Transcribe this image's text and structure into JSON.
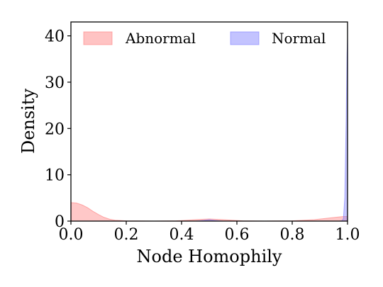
{
  "chart_data": {
    "type": "area",
    "xlabel": "Node Homophily",
    "ylabel": "Density",
    "xlim": [
      0.0,
      1.0
    ],
    "ylim": [
      0,
      43
    ],
    "x_ticks": [
      "0.0",
      "0.2",
      "0.4",
      "0.6",
      "0.8",
      "1.0"
    ],
    "y_ticks": [
      "0",
      "10",
      "20",
      "30",
      "40"
    ],
    "legend_position": "top",
    "grid": false,
    "series": [
      {
        "name": "Abnormal",
        "color": "#ff7b7b",
        "points": [
          [
            0.0,
            4.0
          ],
          [
            0.02,
            3.9
          ],
          [
            0.04,
            3.5
          ],
          [
            0.06,
            2.9
          ],
          [
            0.08,
            2.1
          ],
          [
            0.1,
            1.4
          ],
          [
            0.12,
            0.8
          ],
          [
            0.14,
            0.4
          ],
          [
            0.16,
            0.2
          ],
          [
            0.2,
            0.05
          ],
          [
            0.3,
            0.0
          ],
          [
            0.38,
            0.05
          ],
          [
            0.45,
            0.3
          ],
          [
            0.5,
            0.45
          ],
          [
            0.55,
            0.3
          ],
          [
            0.62,
            0.05
          ],
          [
            0.7,
            0.0
          ],
          [
            0.8,
            0.05
          ],
          [
            0.88,
            0.3
          ],
          [
            0.94,
            0.7
          ],
          [
            0.97,
            0.9
          ],
          [
            0.985,
            1.0
          ],
          [
            1.0,
            1.0
          ]
        ]
      },
      {
        "name": "Normal",
        "color": "#7b7bff",
        "points": [
          [
            0.0,
            0.0
          ],
          [
            0.45,
            0.0
          ],
          [
            0.48,
            0.15
          ],
          [
            0.5,
            0.3
          ],
          [
            0.52,
            0.15
          ],
          [
            0.55,
            0.0
          ],
          [
            0.97,
            0.0
          ],
          [
            0.98,
            0.1
          ],
          [
            0.985,
            0.5
          ],
          [
            0.99,
            5.0
          ],
          [
            0.995,
            22.0
          ],
          [
            0.998,
            36.0
          ],
          [
            1.0,
            39.5
          ]
        ]
      }
    ]
  }
}
